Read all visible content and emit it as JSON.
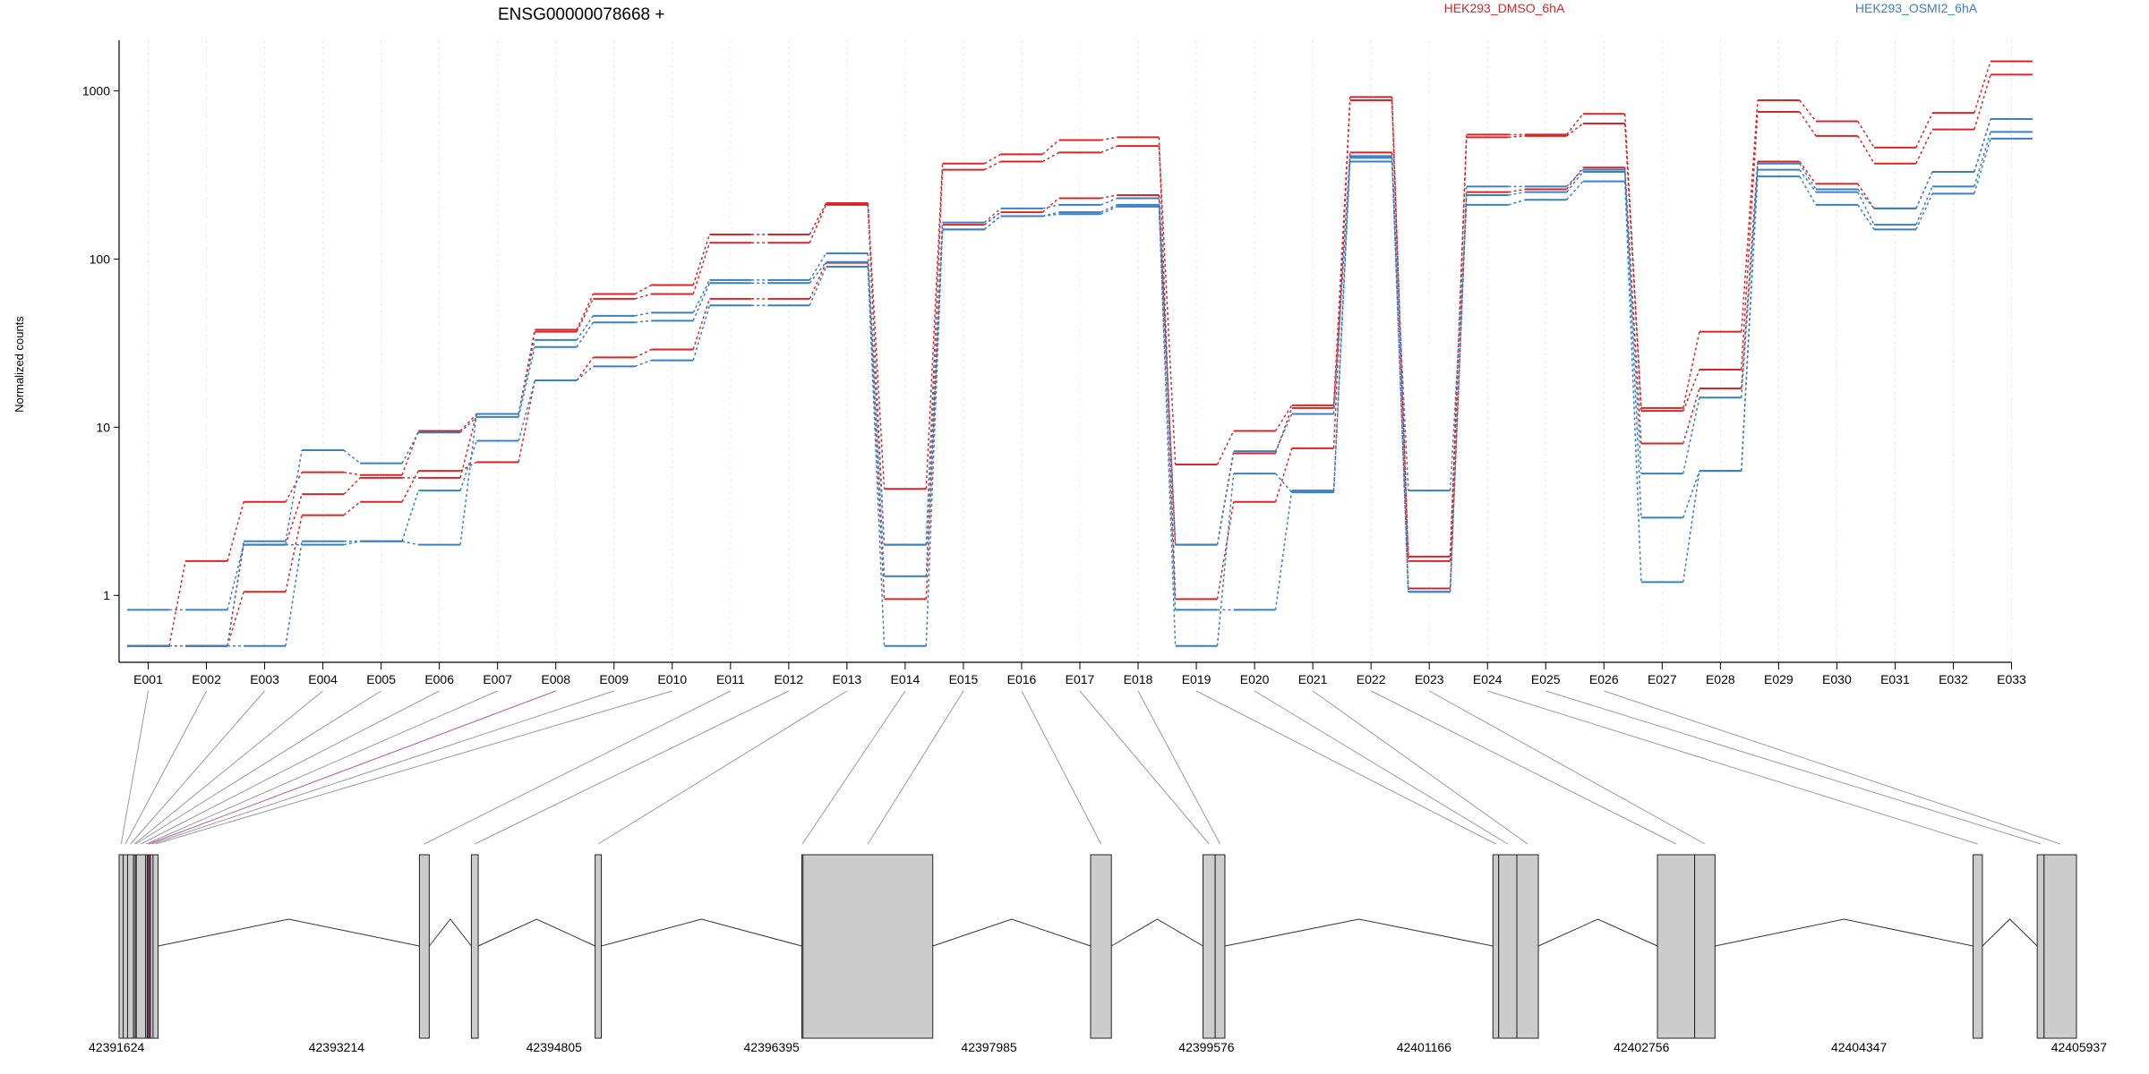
{
  "chart_data": {
    "type": "line",
    "title": "ENSG00000078668 +",
    "ylabel": "Normalized counts",
    "y_scale": "log",
    "ylim": [
      0.4,
      2000
    ],
    "y_ticks": [
      1,
      10,
      100,
      1000
    ],
    "y_tick_labels": [
      "1",
      "10",
      "100",
      "1000"
    ],
    "categories": [
      "E001",
      "E002",
      "E003",
      "E004",
      "E005",
      "E006",
      "E007",
      "E008",
      "E009",
      "E010",
      "E011",
      "E012",
      "E013",
      "E014",
      "E015",
      "E016",
      "E017",
      "E018",
      "E019",
      "E020",
      "E021",
      "E022",
      "E023",
      "E024",
      "E025",
      "E026",
      "E027",
      "E028",
      "E029",
      "E030",
      "E031",
      "E032",
      "E033"
    ],
    "legend": [
      {
        "label": "HEK293_DMSO_6hA",
        "color": "#d62728"
      },
      {
        "label": "HEK293_OSMI2_6hA",
        "color": "#3a7fc0"
      }
    ],
    "series": [
      {
        "group": "DMSO",
        "color": "#d62728",
        "values": [
          0.5,
          1.6,
          3.6,
          5.4,
          5.2,
          9.5,
          12,
          38,
          62,
          70,
          140,
          140,
          215,
          4.3,
          370,
          420,
          510,
          530,
          0.95,
          3.6,
          7.5,
          920,
          1.7,
          550,
          550,
          730,
          13,
          37,
          880,
          660,
          460,
          740,
          1500
        ]
      },
      {
        "group": "DMSO",
        "color": "#d62728",
        "values": [
          0.5,
          0.5,
          2.0,
          4.0,
          5.0,
          5.0,
          12,
          37,
          58,
          62,
          125,
          125,
          210,
          2.0,
          340,
          380,
          430,
          470,
          6.0,
          9.5,
          13.5,
          880,
          1.6,
          530,
          540,
          640,
          12.5,
          22,
          750,
          540,
          370,
          590,
          1250
        ]
      },
      {
        "group": "DMSO",
        "color": "#d62728",
        "values": [
          0.5,
          0.5,
          1.05,
          3.0,
          3.6,
          5.5,
          6.2,
          19,
          26,
          29,
          58,
          58,
          95,
          0.95,
          160,
          190,
          230,
          240,
          2.0,
          7.0,
          13,
          430,
          1.1,
          250,
          260,
          350,
          8.0,
          17,
          380,
          280,
          200,
          330,
          680
        ]
      },
      {
        "group": "OSMI2",
        "color": "#3a7fc0",
        "values": [
          0.82,
          0.82,
          2.0,
          2.0,
          2.1,
          2.0,
          12,
          33,
          46,
          48,
          75,
          75,
          108,
          2.0,
          165,
          200,
          210,
          230,
          2.0,
          7.2,
          12,
          400,
          1.05,
          270,
          270,
          340,
          2.9,
          5.5,
          370,
          260,
          200,
          330,
          680
        ]
      },
      {
        "group": "OSMI2",
        "color": "#3a7fc0",
        "values": [
          0.5,
          0.5,
          2.1,
          7.3,
          6.1,
          9.3,
          11.5,
          30,
          42,
          43,
          72,
          72,
          96,
          1.3,
          150,
          180,
          190,
          210,
          0.82,
          0.82,
          4.2,
          410,
          1.05,
          240,
          250,
          330,
          5.3,
          15,
          340,
          250,
          160,
          270,
          570
        ]
      },
      {
        "group": "OSMI2",
        "color": "#3a7fc0",
        "values": [
          0.5,
          0.5,
          0.5,
          2.1,
          2.1,
          4.2,
          8.3,
          19,
          23,
          25,
          53,
          53,
          90,
          0.5,
          150,
          180,
          185,
          205,
          0.5,
          5.3,
          4.1,
          380,
          4.2,
          210,
          225,
          290,
          1.2,
          5.5,
          310,
          210,
          150,
          245,
          520
        ]
      }
    ],
    "gene_model": {
      "coordinate_ticks": [
        "42391624",
        "42393214",
        "42394805",
        "42396395",
        "42397985",
        "42399576",
        "42401166",
        "42402756",
        "42404347",
        "42405937"
      ],
      "exon_start_range": [
        42391624,
        42405937
      ],
      "exons": [
        {
          "id": "E001",
          "start": 42391624,
          "end": 42391654
        },
        {
          "id": "E002",
          "start": 42391654,
          "end": 42391686
        },
        {
          "id": "E003",
          "start": 42391686,
          "end": 42391730
        },
        {
          "id": "E004",
          "start": 42391730,
          "end": 42391742
        },
        {
          "id": "E005",
          "start": 42391742,
          "end": 42391750
        },
        {
          "id": "E006",
          "start": 42391750,
          "end": 42391818
        },
        {
          "id": "E007",
          "start": 42391818,
          "end": 42391830
        },
        {
          "id": "E008",
          "start": 42391830,
          "end": 42391853,
          "highlighted": true
        },
        {
          "id": "E009",
          "start": 42391853,
          "end": 42391872
        },
        {
          "id": "E010",
          "start": 42391872,
          "end": 42391909
        },
        {
          "id": "E011",
          "start": 42393820,
          "end": 42393892
        },
        {
          "id": "E012",
          "start": 42394200,
          "end": 42394250
        },
        {
          "id": "E013",
          "start": 42395105,
          "end": 42395150
        },
        {
          "id": "E014",
          "start": 42396616,
          "end": 42396625
        },
        {
          "id": "E015",
          "start": 42396625,
          "end": 42397574
        },
        {
          "id": "E016",
          "start": 42398728,
          "end": 42398880
        },
        {
          "id": "E017",
          "start": 42399550,
          "end": 42399639
        },
        {
          "id": "E018",
          "start": 42399639,
          "end": 42399710
        },
        {
          "id": "E019",
          "start": 42401670,
          "end": 42401712
        },
        {
          "id": "E020",
          "start": 42401712,
          "end": 42401845
        },
        {
          "id": "E021",
          "start": 42401845,
          "end": 42402002
        },
        {
          "id": "E022",
          "start": 42402873,
          "end": 42403145
        },
        {
          "id": "E023",
          "start": 42403145,
          "end": 42403294
        },
        {
          "id": "E024",
          "start": 42405181,
          "end": 42405249
        },
        {
          "id": "E025",
          "start": 42405650,
          "end": 42405700
        },
        {
          "id": "E026",
          "start": 42405700,
          "end": 42405937
        }
      ]
    }
  }
}
